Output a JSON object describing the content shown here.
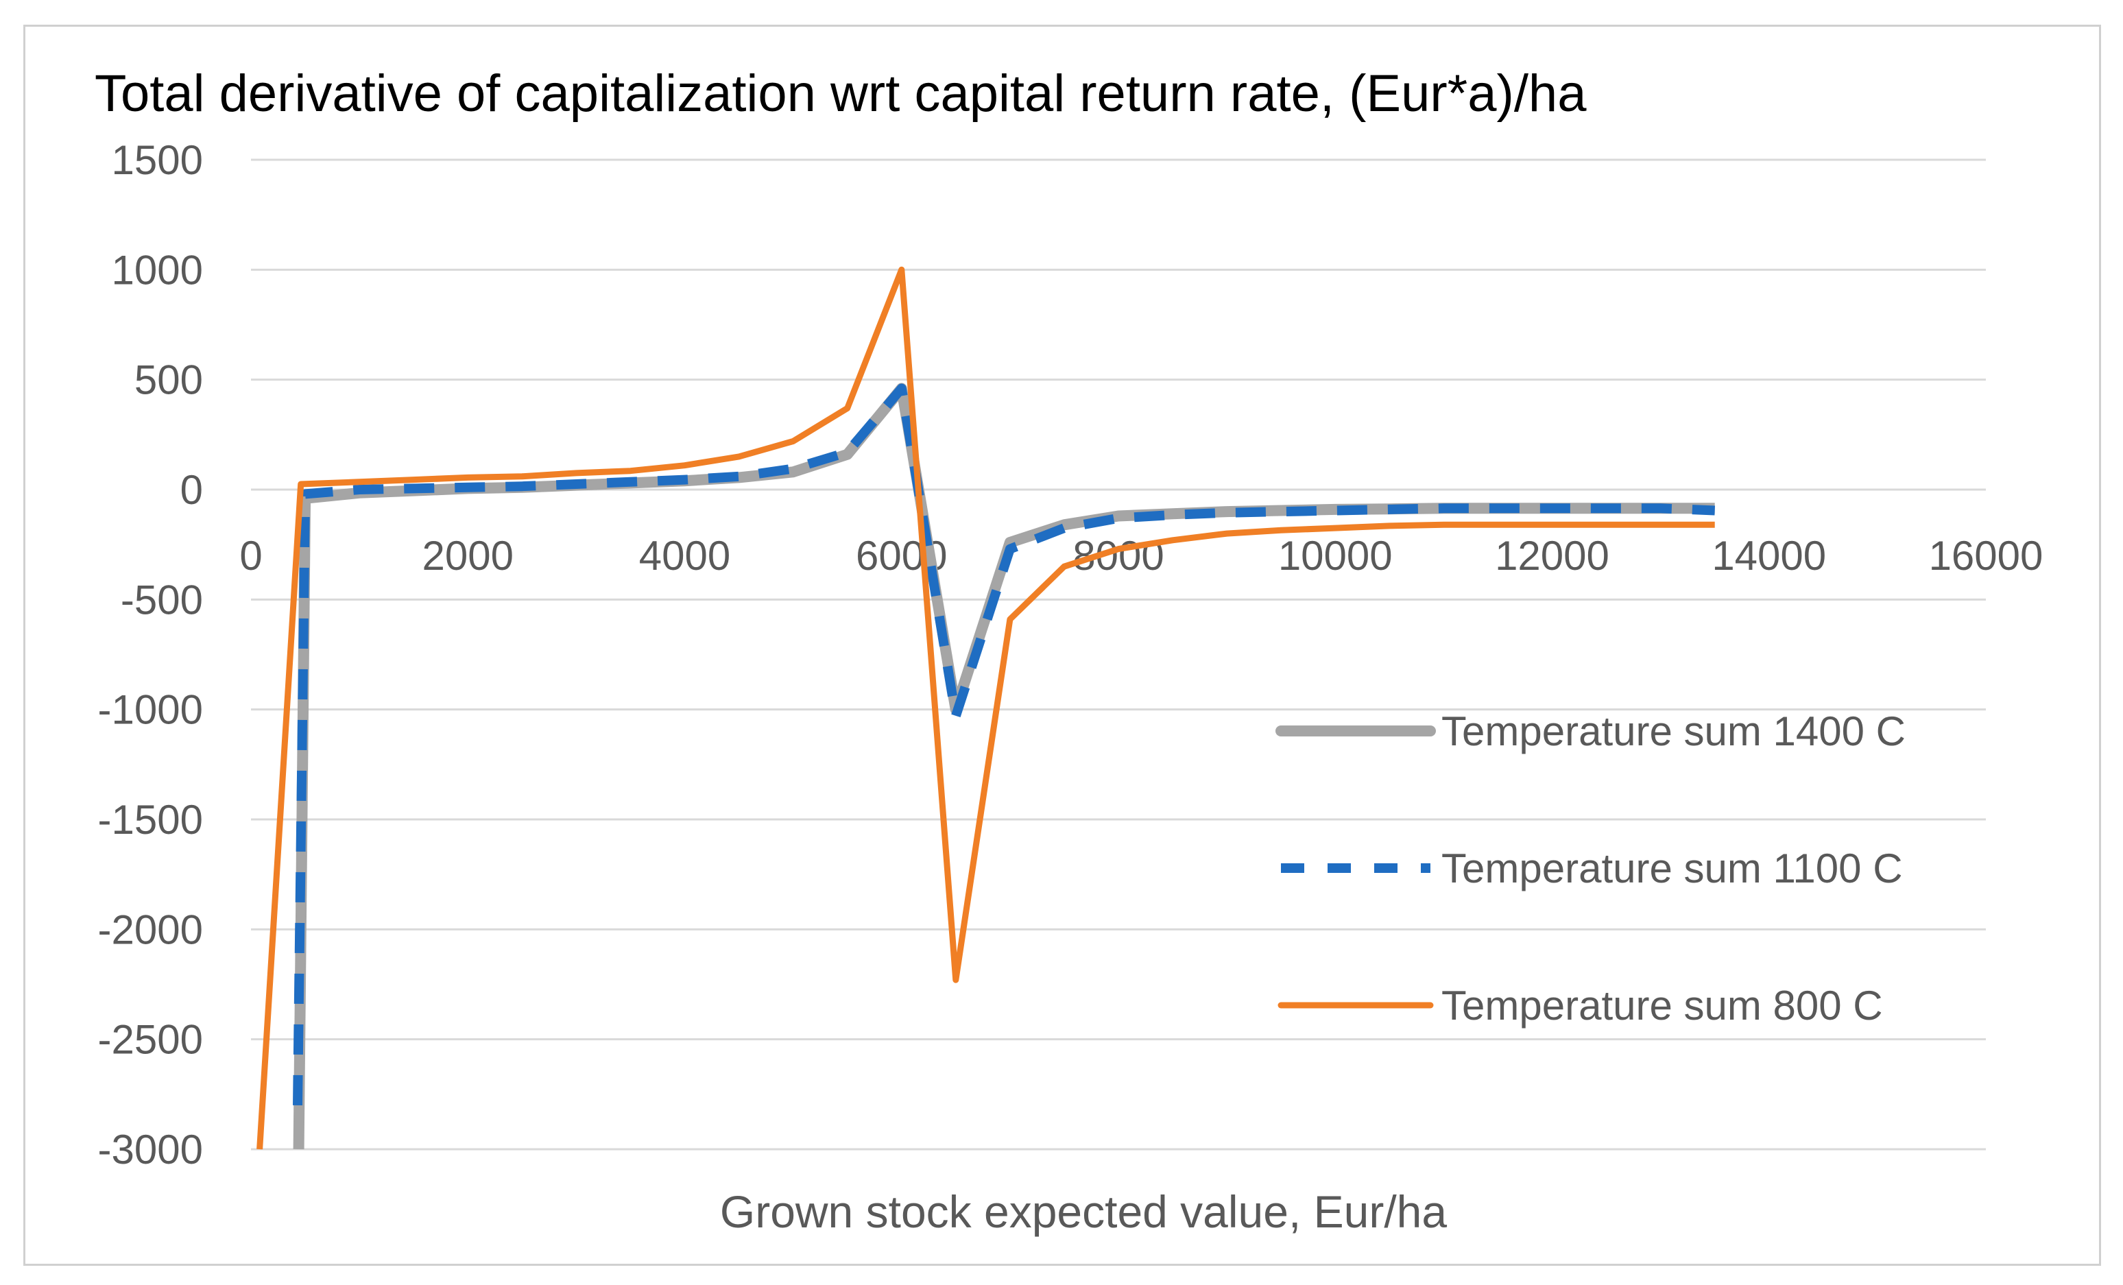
{
  "chart_data": {
    "type": "line",
    "title": "Total derivative of capitalization wrt capital return rate, (Eur*a)/ha",
    "xlabel": "Grown stock expected value, Eur/ha",
    "ylabel": "",
    "xlim": [
      0,
      16000
    ],
    "ylim": [
      -3000,
      1500
    ],
    "x_ticks": [
      "0",
      "2000",
      "4000",
      "6000",
      "8000",
      "10000",
      "12000",
      "14000",
      "16000"
    ],
    "y_ticks": [
      "1500",
      "1000",
      "500",
      "0",
      "-500",
      "-1000",
      "-1500",
      "-2000",
      "-2500",
      "-3000"
    ],
    "grid": true,
    "legend_position": "right",
    "series": [
      {
        "name": "Temperature sum 1400 C",
        "color": "#a5a5a5",
        "style": "solid-thick",
        "x": [
          440,
          500,
          1000,
          1500,
          2000,
          2500,
          3000,
          3500,
          4000,
          4500,
          5000,
          5500,
          6000,
          6500,
          7000,
          7500,
          8000,
          8500,
          9000,
          9500,
          10000,
          10500,
          11000,
          11500,
          12000,
          12500,
          13000,
          13500
        ],
        "y": [
          -3000,
          -40,
          -15,
          -5,
          5,
          10,
          20,
          30,
          40,
          55,
          80,
          160,
          460,
          -1000,
          -240,
          -160,
          -120,
          -110,
          -100,
          -95,
          -90,
          -88,
          -85,
          -85,
          -85,
          -85,
          -85,
          -85
        ]
      },
      {
        "name": "Temperature sum 1100 C",
        "color": "#1f6dc2",
        "style": "dashed",
        "x": [
          430,
          500,
          1000,
          1500,
          2000,
          2500,
          3000,
          3500,
          4000,
          4500,
          5000,
          5500,
          6000,
          6500,
          7000,
          7500,
          8000,
          8500,
          9000,
          9500,
          10000,
          10500,
          11000,
          11500,
          12000,
          12500,
          13000,
          13500
        ],
        "y": [
          -2800,
          -20,
          0,
          5,
          10,
          15,
          25,
          35,
          45,
          60,
          95,
          170,
          460,
          -1030,
          -270,
          -175,
          -130,
          -115,
          -105,
          -100,
          -95,
          -90,
          -85,
          -85,
          -85,
          -85,
          -85,
          -95
        ]
      },
      {
        "name": "Temperature sum 800 C",
        "color": "#f07f25",
        "style": "solid",
        "x": [
          80,
          460,
          1000,
          1500,
          2000,
          2500,
          3000,
          3500,
          4000,
          4500,
          5000,
          5500,
          6000,
          6500,
          7000,
          7500,
          8000,
          8500,
          9000,
          9500,
          10000,
          10500,
          11000,
          11500,
          12000,
          12500,
          13000,
          13500
        ],
        "y": [
          -3000,
          25,
          35,
          45,
          55,
          60,
          75,
          85,
          110,
          150,
          220,
          370,
          1000,
          -2230,
          -590,
          -350,
          -270,
          -230,
          -200,
          -185,
          -175,
          -165,
          -160,
          -160,
          -160,
          -160,
          -160,
          -160
        ]
      }
    ]
  }
}
